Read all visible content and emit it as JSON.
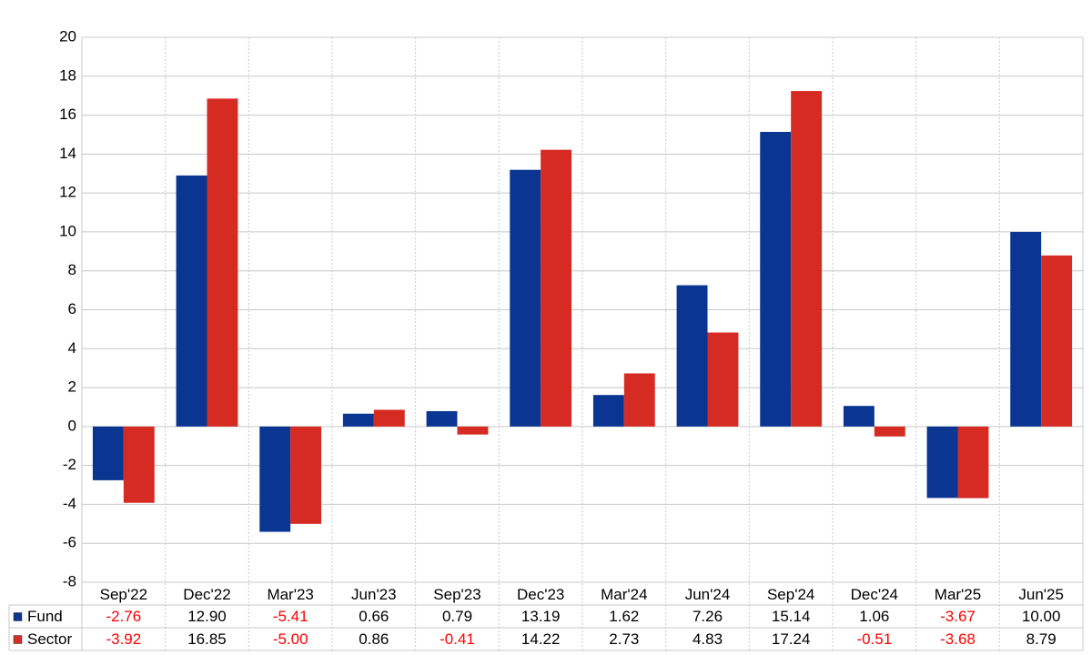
{
  "chart_data": {
    "type": "bar",
    "categories": [
      "Sep'22",
      "Dec'22",
      "Mar'23",
      "Jun'23",
      "Sep'23",
      "Dec'23",
      "Mar'24",
      "Jun'24",
      "Sep'24",
      "Dec'24",
      "Mar'25",
      "Jun'25"
    ],
    "series": [
      {
        "name": "Fund",
        "color": "#0a3591",
        "values": [
          -2.76,
          12.9,
          -5.41,
          0.66,
          0.79,
          13.19,
          1.62,
          7.26,
          15.14,
          1.06,
          -3.67,
          10.0
        ],
        "value_labels": [
          "-2.76",
          "12.90",
          "-5.41",
          "0.66",
          "0.79",
          "13.19",
          "1.62",
          "7.26",
          "15.14",
          "1.06",
          "-3.67",
          "10.00"
        ]
      },
      {
        "name": "Sector",
        "color": "#d52b22",
        "values": [
          -3.92,
          16.85,
          -5.0,
          0.86,
          -0.41,
          14.22,
          2.73,
          4.83,
          17.24,
          -0.51,
          -3.68,
          8.79
        ],
        "value_labels": [
          "-3.92",
          "16.85",
          "-5.00",
          "0.86",
          "-0.41",
          "14.22",
          "2.73",
          "4.83",
          "17.24",
          "-0.51",
          "-3.68",
          "8.79"
        ]
      }
    ],
    "ylim": [
      -8,
      20
    ],
    "yticks": [
      -8,
      -6,
      -4,
      -2,
      0,
      2,
      4,
      6,
      8,
      10,
      12,
      14,
      16,
      18,
      20
    ],
    "grid": true
  }
}
